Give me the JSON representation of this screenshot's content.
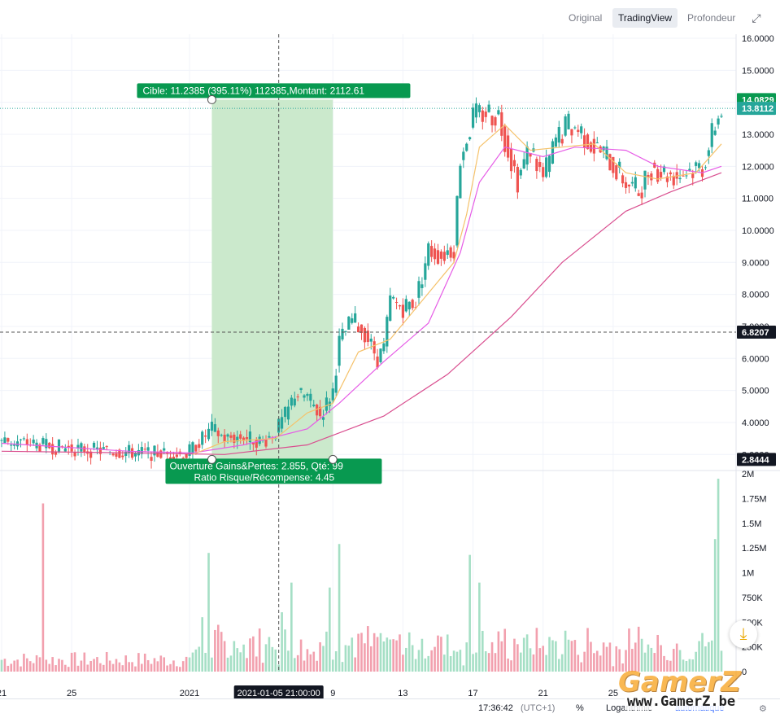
{
  "toolbar": {
    "tabs": [
      {
        "label": "Original",
        "active": false
      },
      {
        "label": "TradingView",
        "active": true
      },
      {
        "label": "Profondeur",
        "active": false
      }
    ]
  },
  "status_bar": {
    "time": "17:36:42",
    "timezone": "(UTC+1)",
    "percent": "%",
    "log": "Logarithmic",
    "auto": "automatique"
  },
  "watermark": {
    "brand": "GamerZ",
    "url": "www.GamerZ.be"
  },
  "colors": {
    "up": "#26a69a",
    "down": "#ef5350",
    "green_label": "#089950",
    "profit_zone": "#cbe9cc",
    "loss_zone": "#f6c9c6",
    "ma_fast": "#f5c26b",
    "ma_mid": "#e65ce6",
    "ma_slow": "#d94e8f"
  },
  "chart_data": {
    "type": "candlestick",
    "price_ylim": [
      2.6,
      16.0
    ],
    "price_ticks": [
      "16.0000",
      "15.0000",
      "14.0000",
      "13.0000",
      "12.0000",
      "11.0000",
      "10.0000",
      "9.0000",
      "8.0000",
      "7.0000",
      "6.0000",
      "5.0000",
      "4.0000",
      "3.0000"
    ],
    "volume_ylim": [
      0,
      2000000
    ],
    "volume_ticks": [
      "2M",
      "1.75M",
      "1.5M",
      "1.25M",
      "1M",
      "750K",
      "500K",
      "250K",
      "0"
    ],
    "x_ticks": [
      "21",
      "25",
      "2021",
      "9",
      "13",
      "17",
      "21",
      "25"
    ],
    "x_crosshair_label": "2021-01-05 21:00:00",
    "bar_index_range": [
      0,
      226
    ],
    "x_tick_indices": [
      0,
      22,
      59,
      104,
      126,
      148,
      170,
      192
    ],
    "crosshair_index": 87,
    "price_labels": [
      {
        "text": "14.0829",
        "value": 14.0829,
        "color": "#089950"
      },
      {
        "text": "13.8112",
        "value": 13.8112,
        "color": "#26a69a"
      },
      {
        "text": "6.8207",
        "value": 6.8207,
        "color": "#131722"
      },
      {
        "text": "2.8444",
        "value": 2.8444,
        "color": "#131722"
      }
    ],
    "target_line": 13.8112,
    "crosshair_price": 6.8207,
    "position": {
      "entry_price": 2.8444,
      "target_price": 14.0829,
      "stop_price": 2.6,
      "start_index": 66,
      "end_index": 104,
      "target_label": "Cible: 11.2385 (395.11%) 112385,Montant: 2112.61",
      "stats_line1": "Ouverture Gains&Pertes: 2.855, Qté: 99",
      "stats_line2": "Ratio Risque/Récompense: 4.45"
    },
    "price_path": [
      [
        0,
        3.45
      ],
      [
        15,
        3.25
      ],
      [
        30,
        3.12
      ],
      [
        45,
        3.05
      ],
      [
        58,
        3.0
      ],
      [
        60,
        3.2
      ],
      [
        64,
        3.6
      ],
      [
        66,
        3.8
      ],
      [
        70,
        3.5
      ],
      [
        76,
        3.55
      ],
      [
        82,
        3.4
      ],
      [
        86,
        3.7
      ],
      [
        90,
        4.4
      ],
      [
        92,
        4.9
      ],
      [
        96,
        4.8
      ],
      [
        100,
        4.2
      ],
      [
        104,
        5.0
      ],
      [
        106,
        6.5
      ],
      [
        110,
        7.2
      ],
      [
        114,
        6.8
      ],
      [
        118,
        6.0
      ],
      [
        120,
        6.3
      ],
      [
        122,
        7.8
      ],
      [
        126,
        7.6
      ],
      [
        130,
        7.8
      ],
      [
        134,
        9.4
      ],
      [
        138,
        9.2
      ],
      [
        142,
        9.5
      ],
      [
        144,
        12.3
      ],
      [
        148,
        13.5
      ],
      [
        152,
        13.7
      ],
      [
        156,
        13.6
      ],
      [
        160,
        12.2
      ],
      [
        162,
        11.6
      ],
      [
        166,
        12.6
      ],
      [
        170,
        11.6
      ],
      [
        174,
        12.8
      ],
      [
        178,
        13.3
      ],
      [
        182,
        13.1
      ],
      [
        186,
        12.6
      ],
      [
        190,
        12.3
      ],
      [
        196,
        11.5
      ],
      [
        200,
        11.2
      ],
      [
        204,
        12.0
      ],
      [
        208,
        11.8
      ],
      [
        212,
        11.7
      ],
      [
        216,
        11.9
      ],
      [
        220,
        12.0
      ],
      [
        222,
        12.6
      ],
      [
        224,
        13.3
      ],
      [
        226,
        13.8
      ]
    ],
    "ma_fast_path": [
      [
        60,
        3.0
      ],
      [
        70,
        3.4
      ],
      [
        86,
        3.5
      ],
      [
        96,
        4.3
      ],
      [
        104,
        4.6
      ],
      [
        112,
        6.2
      ],
      [
        122,
        6.6
      ],
      [
        132,
        7.8
      ],
      [
        142,
        9.0
      ],
      [
        146,
        10.5
      ],
      [
        150,
        12.6
      ],
      [
        158,
        13.3
      ],
      [
        166,
        12.5
      ],
      [
        176,
        12.6
      ],
      [
        186,
        12.7
      ],
      [
        196,
        11.8
      ],
      [
        206,
        11.6
      ],
      [
        218,
        11.8
      ],
      [
        226,
        12.7
      ]
    ],
    "ma_mid_path": [
      [
        0,
        3.35
      ],
      [
        40,
        3.1
      ],
      [
        60,
        3.05
      ],
      [
        76,
        3.3
      ],
      [
        96,
        3.8
      ],
      [
        106,
        4.6
      ],
      [
        120,
        5.9
      ],
      [
        134,
        7.1
      ],
      [
        144,
        9.3
      ],
      [
        150,
        11.5
      ],
      [
        158,
        12.6
      ],
      [
        170,
        12.3
      ],
      [
        180,
        12.6
      ],
      [
        196,
        12.5
      ],
      [
        206,
        12.0
      ],
      [
        220,
        11.8
      ],
      [
        226,
        12.0
      ]
    ],
    "ma_slow_path": [
      [
        0,
        3.1
      ],
      [
        40,
        3.05
      ],
      [
        70,
        3.0
      ],
      [
        96,
        3.3
      ],
      [
        120,
        4.2
      ],
      [
        140,
        5.5
      ],
      [
        150,
        6.4
      ],
      [
        160,
        7.3
      ],
      [
        176,
        9.0
      ],
      [
        196,
        10.6
      ],
      [
        210,
        11.2
      ],
      [
        226,
        11.8
      ]
    ],
    "volume_spikes": [
      [
        13,
        1700000
      ],
      [
        63,
        550000
      ],
      [
        65,
        1200000
      ],
      [
        88,
        600000
      ],
      [
        91,
        900000
      ],
      [
        103,
        850000
      ],
      [
        106,
        1290000
      ],
      [
        147,
        1180000
      ],
      [
        150,
        900000
      ],
      [
        224,
        1340000
      ],
      [
        225,
        1950000
      ]
    ]
  }
}
